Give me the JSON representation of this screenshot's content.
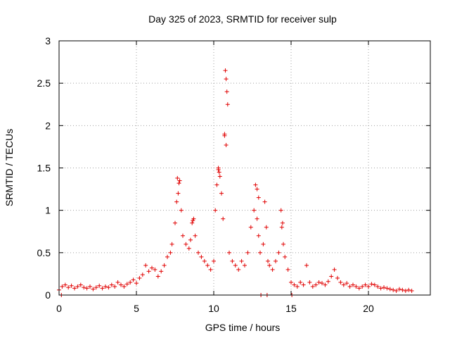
{
  "chart_data": {
    "type": "scatter",
    "title": "Day 325 of 2023, SRMTID for receiver sulp",
    "xlabel": "GPS time / hours",
    "ylabel": "SRMTID / TECUs",
    "xlim": [
      0,
      24
    ],
    "ylim": [
      0,
      3
    ],
    "x_ticks": [
      0,
      5,
      10,
      15,
      20
    ],
    "x_tick_labels": [
      "0",
      "5",
      "10",
      "15",
      "20"
    ],
    "y_ticks": [
      0,
      0.5,
      1,
      1.5,
      2,
      2.5,
      3
    ],
    "y_tick_labels": [
      "0",
      "0.5",
      "1",
      "1.5",
      "2",
      "2.5",
      "3"
    ],
    "grid": true,
    "marker": "plus",
    "series": [
      {
        "name": "SRMTID",
        "color": "#e00000",
        "x": [
          0.0,
          0.2,
          0.4,
          0.6,
          0.8,
          1.0,
          1.2,
          1.4,
          1.6,
          1.8,
          2.0,
          2.2,
          2.4,
          2.6,
          2.8,
          3.0,
          3.2,
          3.4,
          3.6,
          3.8,
          4.0,
          4.2,
          4.4,
          4.6,
          4.8,
          5.0,
          5.2,
          5.4,
          5.6,
          5.8,
          6.0,
          6.2,
          6.4,
          6.6,
          6.8,
          7.0,
          7.2,
          7.3,
          7.5,
          7.6,
          7.7,
          7.8,
          7.9,
          8.0,
          8.2,
          8.4,
          8.5,
          8.6,
          8.7,
          8.8,
          9.0,
          9.2,
          9.4,
          9.6,
          9.8,
          10.0,
          10.1,
          10.2,
          10.3,
          10.4,
          10.5,
          10.6,
          10.7,
          10.75,
          10.8,
          10.85,
          10.9,
          11.0,
          11.2,
          11.4,
          11.6,
          11.8,
          12.0,
          12.2,
          12.4,
          12.6,
          12.7,
          12.8,
          12.9,
          13.0,
          13.2,
          13.3,
          13.4,
          13.5,
          13.6,
          13.8,
          14.0,
          14.2,
          14.4,
          14.5,
          14.6,
          14.8,
          15.0,
          15.2,
          15.4,
          15.6,
          15.8,
          16.0,
          16.2,
          16.4,
          16.6,
          16.8,
          17.0,
          17.2,
          17.4,
          17.6,
          17.8,
          18.0,
          18.2,
          18.4,
          18.6,
          18.8,
          19.0,
          19.2,
          19.4,
          19.6,
          19.8,
          20.0,
          20.2,
          20.4,
          20.6,
          20.8,
          21.0,
          21.2,
          21.4,
          21.6,
          21.8,
          22.0,
          22.2,
          22.4,
          22.6,
          22.8
        ],
        "y": [
          0.06,
          0.1,
          0.12,
          0.09,
          0.11,
          0.08,
          0.1,
          0.12,
          0.09,
          0.08,
          0.1,
          0.07,
          0.09,
          0.11,
          0.08,
          0.1,
          0.09,
          0.12,
          0.1,
          0.15,
          0.12,
          0.1,
          0.13,
          0.15,
          0.18,
          0.14,
          0.2,
          0.24,
          0.35,
          0.28,
          0.32,
          0.3,
          0.22,
          0.28,
          0.35,
          0.45,
          0.5,
          0.6,
          0.85,
          1.1,
          1.2,
          1.35,
          1.0,
          0.7,
          0.6,
          0.55,
          0.65,
          0.85,
          0.9,
          0.7,
          0.5,
          0.45,
          0.4,
          0.35,
          0.3,
          0.4,
          1.0,
          1.3,
          1.5,
          1.4,
          1.2,
          0.9,
          1.9,
          2.65,
          2.55,
          2.4,
          2.25,
          0.5,
          0.4,
          0.35,
          0.3,
          0.4,
          0.35,
          0.5,
          0.8,
          1.0,
          1.3,
          0.9,
          0.7,
          0.5,
          0.6,
          1.1,
          0.8,
          0.4,
          0.35,
          0.3,
          0.4,
          0.5,
          0.8,
          0.6,
          0.45,
          0.3,
          0.15,
          0.12,
          0.1,
          0.15,
          0.12,
          0.35,
          0.15,
          0.1,
          0.12,
          0.15,
          0.14,
          0.12,
          0.16,
          0.22,
          0.3,
          0.2,
          0.15,
          0.12,
          0.14,
          0.1,
          0.12,
          0.1,
          0.08,
          0.1,
          0.12,
          0.1,
          0.13,
          0.12,
          0.1,
          0.08,
          0.09,
          0.08,
          0.07,
          0.06,
          0.05,
          0.07,
          0.06,
          0.05,
          0.06,
          0.05
        ],
        "extra_points": {
          "x": [
            0.15,
            13.05,
            13.45,
            15.05,
            7.65,
            7.75,
            10.3,
            10.35,
            10.7,
            10.8,
            12.8,
            12.9,
            14.35,
            14.45,
            8.65
          ],
          "y": [
            0.0,
            0.0,
            0.0,
            0.0,
            1.38,
            1.32,
            1.48,
            1.45,
            1.88,
            1.77,
            1.25,
            1.15,
            1.0,
            0.85,
            0.88
          ]
        }
      }
    ]
  }
}
